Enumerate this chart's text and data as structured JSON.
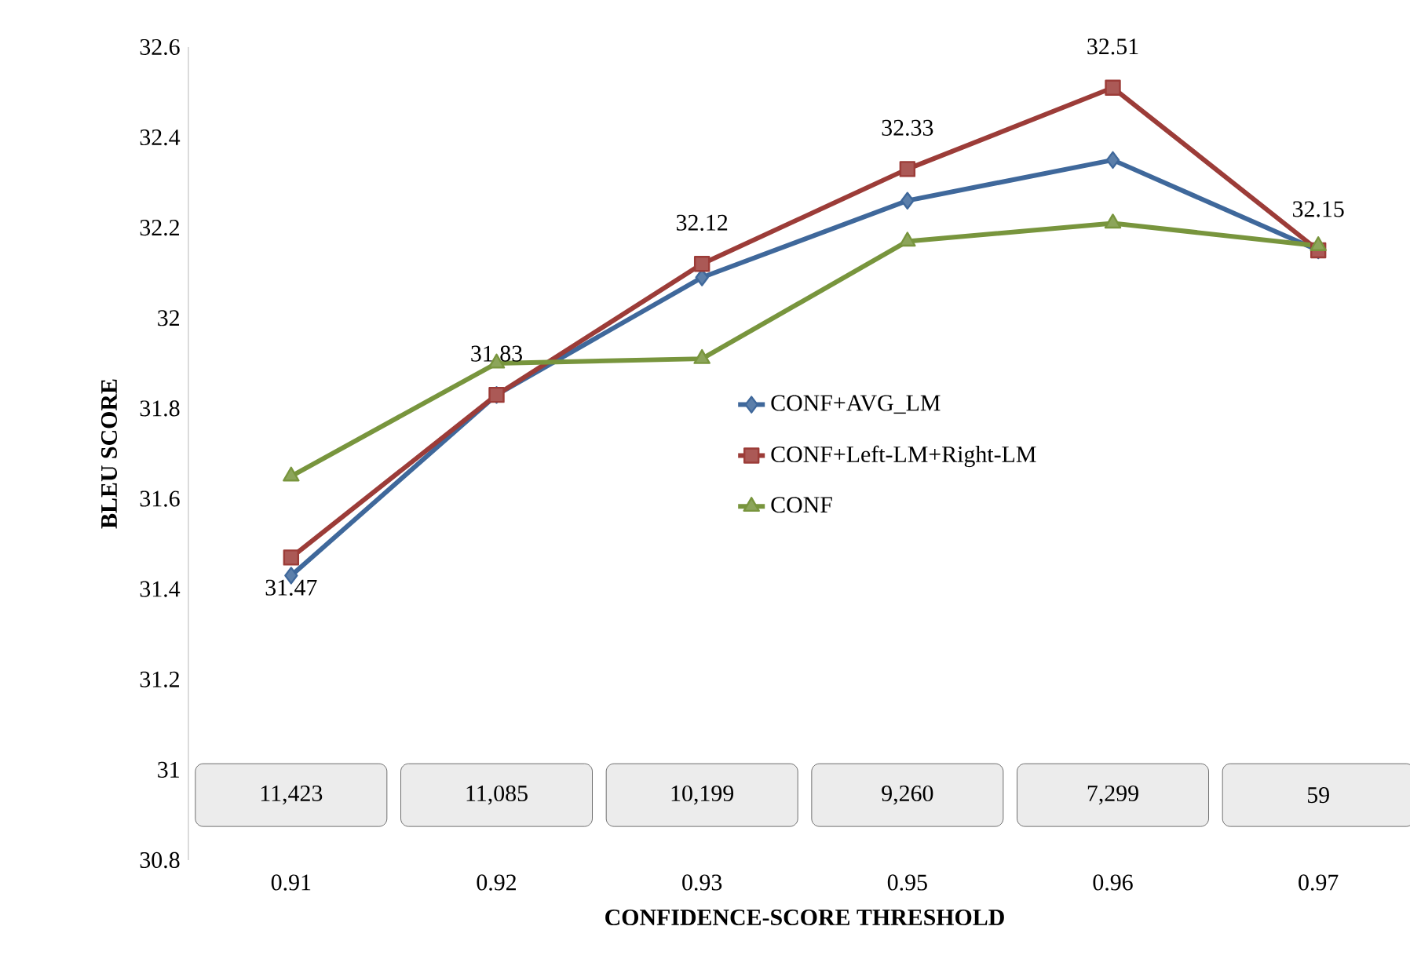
{
  "chart_data": {
    "type": "line",
    "xlabel": "CONFIDENCE-SCORE THRESHOLD",
    "ylabel": "BLEU SCORE",
    "categories": [
      "0.91",
      "0.92",
      "0.93",
      "0.95",
      "0.96",
      "0.97"
    ],
    "ylim": [
      30.8,
      32.6
    ],
    "yticks": [
      30.8,
      31,
      31.2,
      31.4,
      31.6,
      31.8,
      32,
      32.2,
      32.4,
      32.6
    ],
    "legend": "center",
    "grid": false,
    "series": [
      {
        "name": "CONF+AVG_LM",
        "color": "#3f689b",
        "marker": "diamond",
        "values": [
          31.43,
          31.83,
          32.09,
          32.26,
          32.35,
          32.15
        ]
      },
      {
        "name": "CONF+Left-LM+Right-LM",
        "color": "#9c3c38",
        "marker": "square",
        "values": [
          31.47,
          31.83,
          32.12,
          32.33,
          32.51,
          32.15
        ],
        "value_labels": [
          "31.47",
          "31.83",
          "32.12",
          "32.33",
          "32.51",
          "32.15"
        ]
      },
      {
        "name": "CONF",
        "color": "#78953d",
        "marker": "triangle",
        "values": [
          31.65,
          31.9,
          31.91,
          32.17,
          32.21,
          32.16
        ]
      }
    ],
    "annotations": [
      "11,423",
      "11,085",
      "10,199",
      "9,260",
      "7,299",
      "59"
    ]
  }
}
